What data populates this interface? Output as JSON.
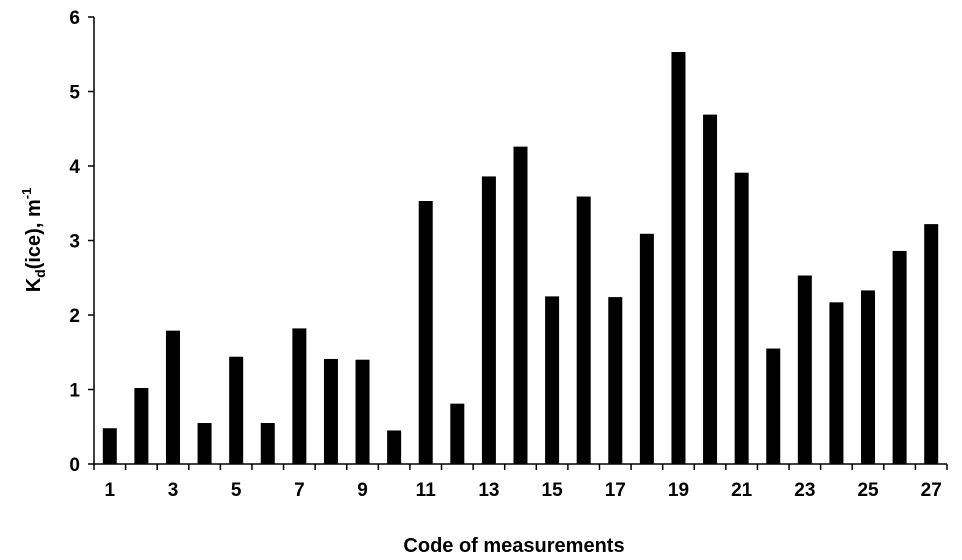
{
  "chart_data": {
    "type": "bar",
    "categories": [
      "1",
      "2",
      "3",
      "4",
      "5",
      "6",
      "7",
      "8",
      "9",
      "10",
      "11",
      "12",
      "13",
      "14",
      "15",
      "16",
      "17",
      "18",
      "19",
      "20",
      "21",
      "22",
      "23",
      "24",
      "25",
      "26",
      "27"
    ],
    "values": [
      0.48,
      1.02,
      1.79,
      0.55,
      1.44,
      0.55,
      1.82,
      1.41,
      1.4,
      0.45,
      3.53,
      0.81,
      3.86,
      4.26,
      2.25,
      3.59,
      2.24,
      3.09,
      5.53,
      4.69,
      3.91,
      1.55,
      2.53,
      2.17,
      2.33,
      2.86,
      3.22
    ],
    "x_tick_labels": [
      "1",
      "3",
      "5",
      "7",
      "9",
      "11",
      "13",
      "15",
      "17",
      "19",
      "21",
      "23",
      "25",
      "27"
    ],
    "y_tick_labels": [
      "0",
      "1",
      "2",
      "3",
      "4",
      "5",
      "6"
    ],
    "ylim": [
      0,
      6
    ],
    "xlabel": "Code of measurements",
    "ylabel": {
      "main": "K",
      "subscript": "d",
      "rest": "(ice), m",
      "superscript": "-1"
    },
    "grid": false,
    "bar_color": "#000000"
  }
}
